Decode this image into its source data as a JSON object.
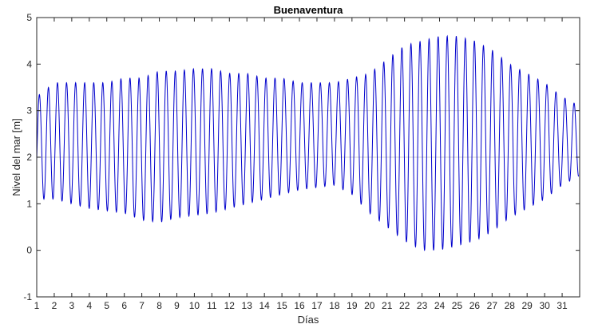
{
  "chart_data": {
    "type": "line",
    "title": "Buenaventura",
    "xlabel": "Días",
    "ylabel": "Nivel del mar [m]",
    "xlim": [
      1,
      32
    ],
    "ylim": [
      -1,
      5
    ],
    "xticks": [
      "1",
      "2",
      "3",
      "4",
      "5",
      "6",
      "7",
      "8",
      "9",
      "10",
      "11",
      "12",
      "13",
      "14",
      "15",
      "16",
      "17",
      "18",
      "19",
      "20",
      "21",
      "22",
      "23",
      "24",
      "25",
      "26",
      "27",
      "28",
      "29",
      "30",
      "31"
    ],
    "yticks": [
      "-1",
      "0",
      "1",
      "2",
      "3",
      "4",
      "5"
    ],
    "grid_y": [
      2,
      3
    ],
    "series_color": "#0000cc",
    "grid_color": "#d0d0d0",
    "series": [
      {
        "tide_envelope": {
          "days": [
            1,
            2,
            3,
            4,
            5,
            6,
            7,
            8,
            9,
            10,
            11,
            12,
            13,
            14,
            15,
            16,
            17,
            18,
            19,
            20,
            21,
            22,
            23,
            24,
            25,
            26,
            27,
            28,
            29,
            30,
            31,
            32
          ],
          "high_water": [
            3.3,
            3.6,
            3.6,
            3.6,
            3.6,
            3.7,
            3.7,
            3.85,
            3.85,
            3.9,
            3.9,
            3.8,
            3.8,
            3.7,
            3.7,
            3.6,
            3.6,
            3.6,
            3.7,
            3.8,
            4.1,
            4.4,
            4.5,
            4.6,
            4.6,
            4.5,
            4.3,
            4.0,
            3.8,
            3.6,
            3.3,
            3.1
          ],
          "low_water": [
            1.1,
            1.1,
            1.0,
            0.9,
            0.85,
            0.8,
            0.65,
            0.6,
            0.7,
            0.75,
            0.8,
            0.9,
            1.0,
            1.1,
            1.2,
            1.3,
            1.35,
            1.4,
            1.2,
            0.8,
            0.5,
            0.2,
            0.0,
            0.0,
            0.1,
            0.2,
            0.4,
            0.7,
            0.9,
            1.1,
            1.4,
            1.6
          ]
        }
      }
    ]
  }
}
